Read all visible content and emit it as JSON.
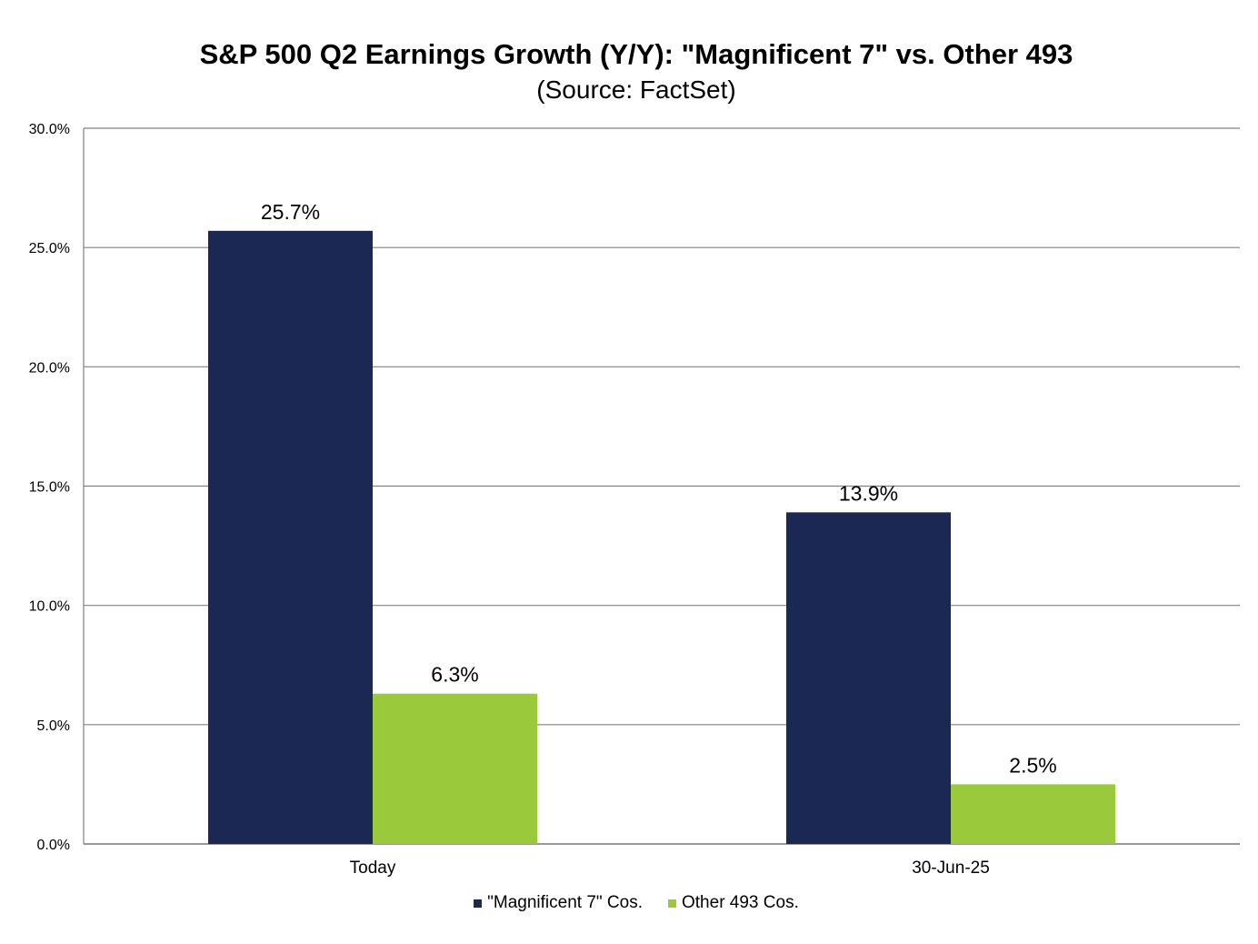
{
  "colors": {
    "series_1": "#1a2853",
    "series_2": "#9aca3c",
    "grid": "#808080",
    "text": "#000000"
  },
  "chart_data": {
    "type": "bar",
    "title": "S&P 500 Q2 Earnings Growth (Y/Y): \"Magnificent 7\" vs. Other 493",
    "subtitle": "(Source: FactSet)",
    "categories": [
      "Today",
      "30-Jun-25"
    ],
    "series": [
      {
        "name": "\"Magnificent 7\" Cos.",
        "values": [
          25.7,
          13.9
        ],
        "labels": [
          "25.7%",
          "13.9%"
        ]
      },
      {
        "name": "Other 493 Cos.",
        "values": [
          6.3,
          2.5
        ],
        "labels": [
          "6.3%",
          "2.5%"
        ]
      }
    ],
    "ylim": [
      0,
      30
    ],
    "yticks": [
      0,
      5,
      10,
      15,
      20,
      25,
      30
    ],
    "ytick_labels": [
      "0.0%",
      "5.0%",
      "10.0%",
      "15.0%",
      "20.0%",
      "25.0%",
      "30.0%"
    ],
    "grid": true,
    "legend_position": "bottom"
  }
}
